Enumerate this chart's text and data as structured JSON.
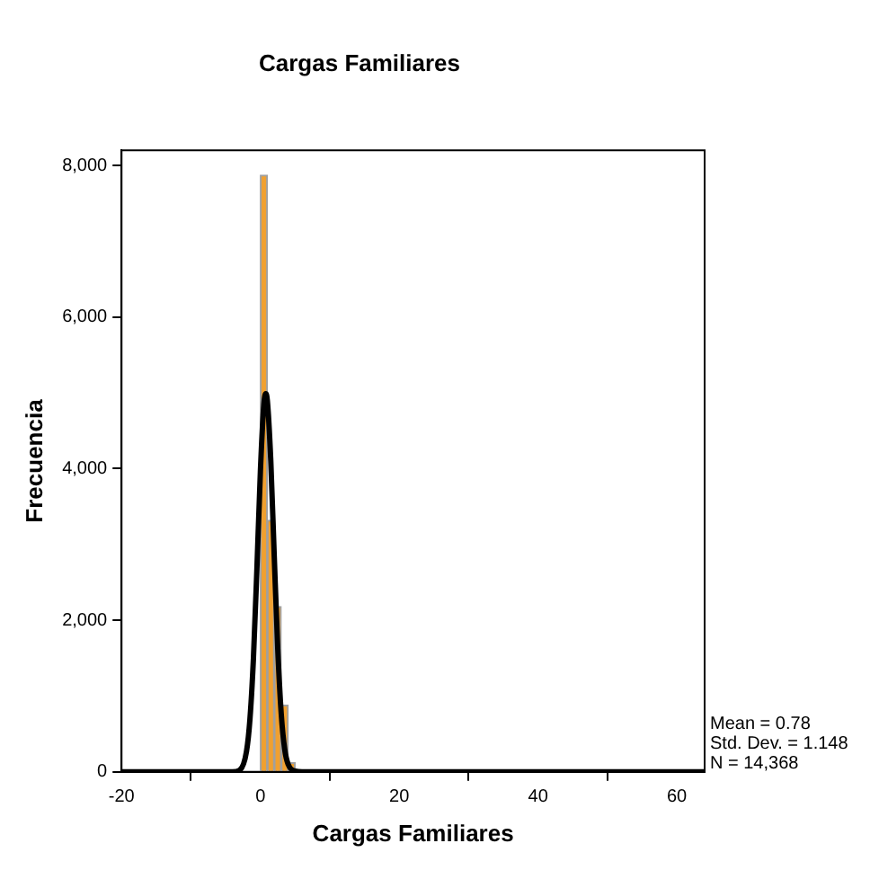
{
  "chart_data": {
    "type": "histogram",
    "title": "Cargas Familiares",
    "xlabel": "Cargas Familiares",
    "ylabel": "Frecuencia",
    "bins": [
      0,
      1,
      2,
      3,
      4,
      5
    ],
    "values": [
      7870,
      3320,
      2180,
      880,
      120
    ],
    "color": "#f0a030",
    "series": [
      {
        "type": "line",
        "color": "#000000",
        "x": [
          -20,
          -4,
          -3,
          -2,
          -1.5,
          -1,
          -0.5,
          0,
          0.5,
          0.78,
          1,
          1.5,
          2,
          2.5,
          3,
          3.5,
          4,
          5,
          6,
          64
        ],
        "values": [
          0,
          0,
          20,
          270,
          700,
          1500,
          2680,
          3960,
          4850,
          4990,
          4900,
          4100,
          2840,
          1630,
          770,
          300,
          100,
          10,
          0,
          0
        ]
      }
    ],
    "xlim": [
      -20,
      64
    ],
    "xticks": [
      -20,
      0,
      20,
      40,
      60
    ],
    "ylim": [
      0,
      8200
    ],
    "yticks": [
      {
        "value": 0,
        "label": "0"
      },
      {
        "value": 2000,
        "label": "2,000"
      },
      {
        "value": 4000,
        "label": "4,000"
      },
      {
        "value": 6000,
        "label": "6,000"
      },
      {
        "value": 8000,
        "label": "8,000"
      }
    ],
    "grid": false,
    "legend": false,
    "marker": "none",
    "line_style": "solid",
    "annotations": [
      "Mean = 0.78",
      "Std. Dev. = 1.148",
      "N = 14,368"
    ]
  }
}
